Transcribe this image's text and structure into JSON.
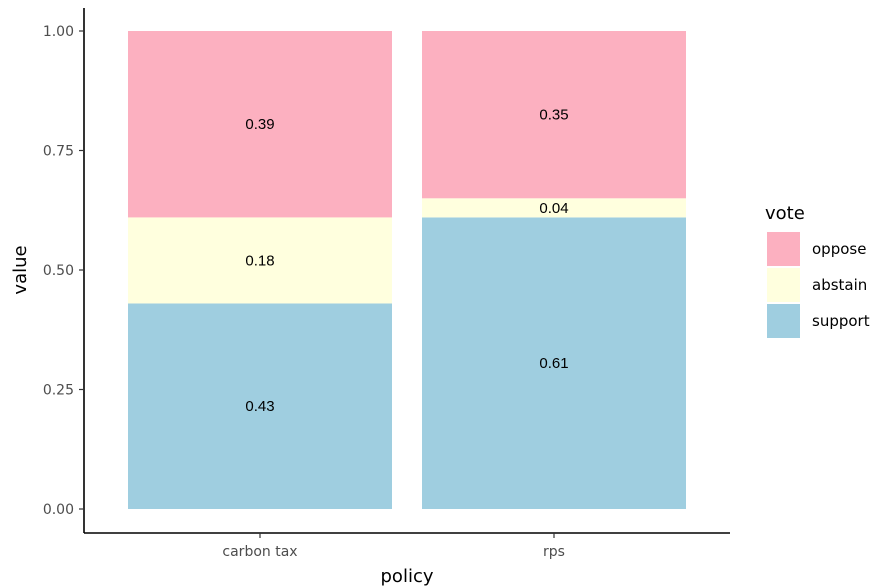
{
  "chart_data": {
    "type": "bar",
    "stacked": true,
    "categories": [
      "carbon tax",
      "rps"
    ],
    "series": [
      {
        "name": "support",
        "values": [
          0.43,
          0.61
        ],
        "color": "#9fcee0"
      },
      {
        "name": "abstain",
        "values": [
          0.18,
          0.04
        ],
        "color": "#ffffde"
      },
      {
        "name": "oppose",
        "values": [
          0.39,
          0.35
        ],
        "color": "#fcb0c0"
      }
    ],
    "data_labels": [
      [
        "0.43",
        "0.61"
      ],
      [
        "0.18",
        "0.04"
      ],
      [
        "0.39",
        "0.35"
      ]
    ],
    "xlabel": "policy",
    "ylabel": "value",
    "ylim": [
      0,
      1
    ],
    "yticks": [
      0,
      0.25,
      0.5,
      0.75,
      1
    ],
    "ytick_labels": [
      "0.00",
      "0.25",
      "0.50",
      "0.75",
      "1.00"
    ],
    "legend": {
      "title": "vote",
      "position": "right",
      "order": [
        "oppose",
        "abstain",
        "support"
      ]
    },
    "grid": false
  }
}
